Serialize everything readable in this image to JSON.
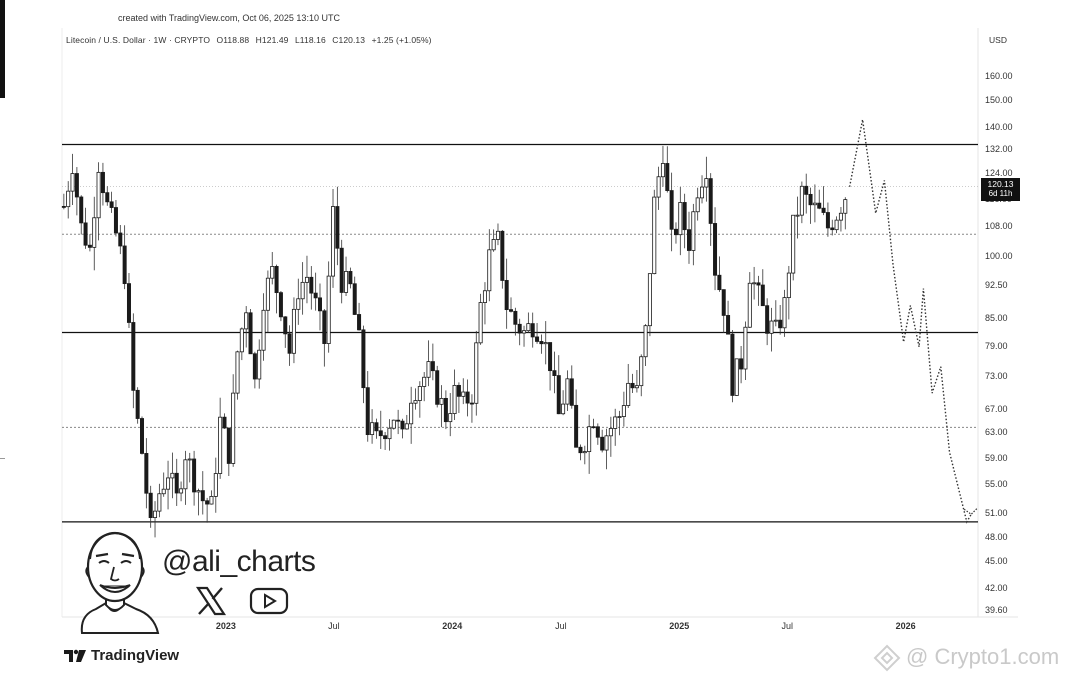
{
  "header": {
    "created": "created with TradingView.com, Oct 06, 2025 13:10 UTC",
    "symbol": "Litecoin / U.S. Dollar · 1W · CRYPTO",
    "open": "O118.88",
    "high": "H121.49",
    "low": "L118.16",
    "close": "C120.13",
    "change": "+1.25 (+1.05%)",
    "currency": "USD"
  },
  "price_label": {
    "value": "120.13",
    "countdown": "6d 11h"
  },
  "branding": {
    "handle": "@ali_charts",
    "tradingview": "TradingView",
    "watermark": "@ Crypto1.com"
  },
  "icons": [
    "cartoon-avatar-icon",
    "x-logo-icon",
    "youtube-play-icon",
    "tradingview-logo-icon",
    "binance-diamond-icon"
  ],
  "colors": {
    "candle": "#1a1a1a",
    "line": "#111111",
    "dotted": "#888888",
    "background": "#ffffff"
  },
  "chart_data": {
    "type": "candlestick",
    "title": "Litecoin / U.S. Dollar · 1W · CRYPTO",
    "y_scale": "log",
    "ylim": [
      37.5,
      177
    ],
    "y_ticks": [
      160.0,
      150.0,
      140.0,
      132.0,
      124.0,
      116.0,
      108.0,
      100.0,
      92.5,
      85.0,
      79.0,
      73.0,
      67.0,
      63.0,
      59.0,
      55.0,
      51.0,
      48.0,
      45.0,
      42.0,
      39.6
    ],
    "y_tick_labels": [
      "160.00",
      "150.00",
      "140.00",
      "132.00",
      "124.00",
      "116.00",
      "108.00",
      "100.00",
      "92.50",
      "85.00",
      "79.00",
      "73.00",
      "67.00",
      "63.00",
      "59.00",
      "55.00",
      "51.00",
      "48.00",
      "45.00",
      "42.00",
      "39.60"
    ],
    "x_ticks": [
      {
        "label": "Jul",
        "date": "2022-07-01",
        "bold": false
      },
      {
        "label": "2023",
        "date": "2023-01-01",
        "bold": true
      },
      {
        "label": "Jul",
        "date": "2023-07-01",
        "bold": false
      },
      {
        "label": "2024",
        "date": "2024-01-01",
        "bold": true
      },
      {
        "label": "Jul",
        "date": "2024-07-01",
        "bold": false
      },
      {
        "label": "2025",
        "date": "2025-01-01",
        "bold": true
      },
      {
        "label": "Jul",
        "date": "2025-07-01",
        "bold": false
      },
      {
        "label": "2026",
        "date": "2026-01-01",
        "bold": true
      }
    ],
    "xlim": [
      "2022-04-15",
      "2026-05-01"
    ],
    "horizontal_levels": [
      {
        "price": 134,
        "style": "solid"
      },
      {
        "price": 106,
        "style": "dotted"
      },
      {
        "price": 82,
        "style": "solid"
      },
      {
        "price": 64,
        "style": "dotted"
      },
      {
        "price": 50,
        "style": "solid"
      }
    ],
    "last_price_line": 120.13,
    "candle_anchors": [
      [
        "2022-04-18",
        114
      ],
      [
        "2022-05-02",
        128
      ],
      [
        "2022-05-16",
        108
      ],
      [
        "2022-05-30",
        102
      ],
      [
        "2022-06-13",
        128
      ],
      [
        "2022-06-27",
        114
      ],
      [
        "2022-07-11",
        106
      ],
      [
        "2022-07-25",
        96
      ],
      [
        "2022-08-08",
        70
      ],
      [
        "2022-08-22",
        60
      ],
      [
        "2022-09-05",
        49
      ],
      [
        "2022-09-19",
        54
      ],
      [
        "2022-10-03",
        57
      ],
      [
        "2022-10-17",
        53
      ],
      [
        "2022-10-31",
        60
      ],
      [
        "2022-11-14",
        56
      ],
      [
        "2022-11-28",
        53
      ],
      [
        "2022-12-12",
        52
      ],
      [
        "2022-12-26",
        65
      ],
      [
        "2023-01-09",
        60
      ],
      [
        "2023-01-23",
        78
      ],
      [
        "2023-02-06",
        88
      ],
      [
        "2023-02-20",
        72
      ],
      [
        "2023-03-06",
        90
      ],
      [
        "2023-03-20",
        96
      ],
      [
        "2023-04-03",
        88
      ],
      [
        "2023-04-17",
        78
      ],
      [
        "2023-05-01",
        92
      ],
      [
        "2023-05-15",
        95
      ],
      [
        "2023-05-29",
        88
      ],
      [
        "2023-06-12",
        80
      ],
      [
        "2023-06-26",
        112
      ],
      [
        "2023-07-10",
        94
      ],
      [
        "2023-07-24",
        92
      ],
      [
        "2023-08-07",
        80
      ],
      [
        "2023-08-21",
        64
      ],
      [
        "2023-09-04",
        62
      ],
      [
        "2023-09-18",
        64
      ],
      [
        "2023-10-02",
        66
      ],
      [
        "2023-10-16",
        62
      ],
      [
        "2023-10-30",
        70
      ],
      [
        "2023-11-13",
        72
      ],
      [
        "2023-11-27",
        74
      ],
      [
        "2023-12-11",
        70
      ],
      [
        "2023-12-25",
        66
      ],
      [
        "2024-01-08",
        70
      ],
      [
        "2024-01-22",
        68
      ],
      [
        "2024-02-05",
        70
      ],
      [
        "2024-02-19",
        88
      ],
      [
        "2024-03-04",
        100
      ],
      [
        "2024-03-18",
        104
      ],
      [
        "2024-04-01",
        88
      ],
      [
        "2024-04-15",
        84
      ],
      [
        "2024-04-29",
        82
      ],
      [
        "2024-05-13",
        84
      ],
      [
        "2024-05-27",
        82
      ],
      [
        "2024-06-10",
        76
      ],
      [
        "2024-06-24",
        66
      ],
      [
        "2024-07-08",
        72
      ],
      [
        "2024-07-22",
        60
      ],
      [
        "2024-08-05",
        62
      ],
      [
        "2024-08-19",
        66
      ],
      [
        "2024-09-02",
        62
      ],
      [
        "2024-09-16",
        64
      ],
      [
        "2024-09-30",
        66
      ],
      [
        "2024-10-14",
        72
      ],
      [
        "2024-10-28",
        70
      ],
      [
        "2024-11-11",
        82
      ],
      [
        "2024-11-25",
        115
      ],
      [
        "2024-12-09",
        132
      ],
      [
        "2024-12-23",
        104
      ],
      [
        "2025-01-06",
        112
      ],
      [
        "2025-01-20",
        104
      ],
      [
        "2025-02-03",
        120
      ],
      [
        "2025-02-17",
        127
      ],
      [
        "2025-03-03",
        97
      ],
      [
        "2025-03-17",
        88
      ],
      [
        "2025-03-31",
        72
      ],
      [
        "2025-04-14",
        76
      ],
      [
        "2025-04-28",
        96
      ],
      [
        "2025-05-12",
        90
      ],
      [
        "2025-05-26",
        84
      ],
      [
        "2025-06-09",
        82
      ],
      [
        "2025-06-23",
        88
      ],
      [
        "2025-07-07",
        108
      ],
      [
        "2025-07-21",
        118
      ],
      [
        "2025-08-04",
        114
      ],
      [
        "2025-08-18",
        112
      ],
      [
        "2025-09-01",
        108
      ],
      [
        "2025-09-15",
        112
      ],
      [
        "2025-10-06",
        120.13
      ]
    ],
    "projection_path": [
      [
        "2025-10-06",
        120
      ],
      [
        "2025-10-27",
        143
      ],
      [
        "2025-11-17",
        112
      ],
      [
        "2025-12-01",
        122
      ],
      [
        "2025-12-15",
        98
      ],
      [
        "2026-01-01",
        80
      ],
      [
        "2026-01-12",
        88
      ],
      [
        "2026-01-26",
        79
      ],
      [
        "2026-02-02",
        92
      ],
      [
        "2026-02-16",
        70
      ],
      [
        "2026-03-02",
        75
      ],
      [
        "2026-03-16",
        60
      ],
      [
        "2026-04-13",
        50
      ],
      [
        "2026-04-20",
        51
      ]
    ]
  }
}
